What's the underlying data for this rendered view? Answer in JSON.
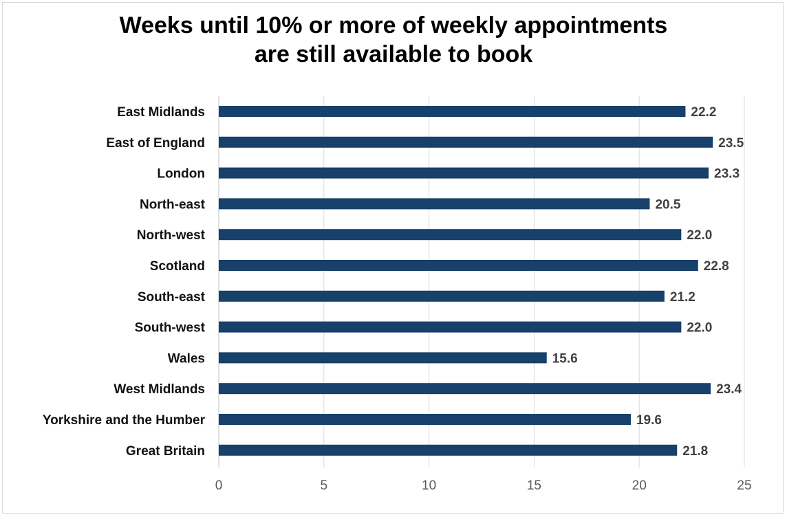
{
  "chart_data": {
    "type": "bar",
    "orientation": "horizontal",
    "title_lines": [
      "Weeks until 10% or more of weekly appointments",
      "are still available to book"
    ],
    "categories": [
      "East Midlands",
      "East of England",
      "London",
      "North-east",
      "North-west",
      "Scotland",
      "South-east",
      "South-west",
      "Wales",
      "West Midlands",
      "Yorkshire and the Humber",
      "Great Britain"
    ],
    "values": [
      22.2,
      23.5,
      23.3,
      20.5,
      22.0,
      22.8,
      21.2,
      22.0,
      15.6,
      23.4,
      19.6,
      21.8
    ],
    "value_labels": [
      "22.2",
      "23.5",
      "23.3",
      "20.5",
      "22.0",
      "22.8",
      "21.2",
      "22.0",
      "15.6",
      "23.4",
      "19.6",
      "21.8"
    ],
    "xlim": [
      0,
      25
    ],
    "xticks": [
      0,
      5,
      10,
      15,
      20,
      25
    ],
    "grid": "vertical",
    "legend": "none",
    "bar_color": "#17406a"
  }
}
